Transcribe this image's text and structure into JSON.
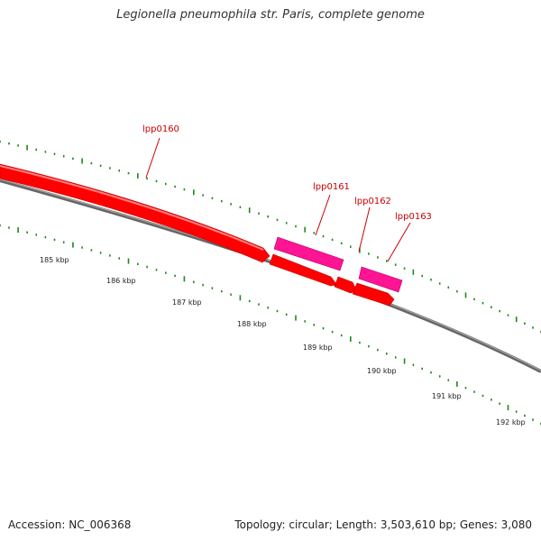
{
  "title": "Legionella pneumophila str. Paris, complete genome",
  "accession": "Accession: NC_006368",
  "summary": "Topology: circular; Length: 3,503,610 bp; Genes: 3,080",
  "colors": {
    "gene_forward": "#ff0000",
    "gene_highlight": "#ff1493",
    "backbone": "#888888",
    "ticks": "#1a8a1a",
    "label": "#cc0000"
  },
  "genes": [
    {
      "name": "lpp0160"
    },
    {
      "name": "lpp0161"
    },
    {
      "name": "lpp0162"
    },
    {
      "name": "lpp0163"
    }
  ],
  "kbp_labels": [
    "185 kbp",
    "186 kbp",
    "187 kbp",
    "188 kbp",
    "189 kbp",
    "190 kbp",
    "191 kbp",
    "192 kbp"
  ]
}
